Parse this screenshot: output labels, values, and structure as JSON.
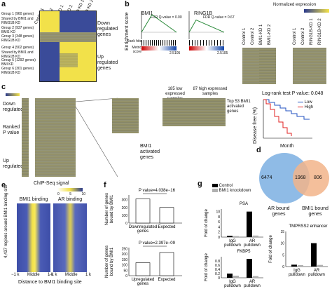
{
  "panels": {
    "a": {
      "letter": "a",
      "columns": [
        "Control 1",
        "Control 2",
        "BMI1-KD 1",
        "BMI1-KD 2",
        "RING1B-KD 1",
        "RING1B-KD 2"
      ],
      "groups": [
        "Group 1 (960 genes)",
        "Shared by BMI1 and RING1B KD",
        "Group 2 (937 genes) BMI1 KD",
        "Group 3 (348 genes) RING1B KD",
        "Group 4 (502 genes)",
        "Shared by BMI1 and RING1B KD",
        "Group 5 (1292 genes) BMI KD",
        "Group 6 (301 genes) RING1B KD"
      ],
      "down_label": "Down regulated genes",
      "up_label": "Up regulated genes"
    },
    "b": {
      "letter": "b",
      "gsea": [
        {
          "title": "BMI1",
          "fdr": "FDR Q-value = 0.00"
        },
        {
          "title": "RING1B",
          "fdr": "FDR Q-value = 0.67"
        }
      ],
      "ylabel": "Enrichment score",
      "rank_hits": "Rank hits",
      "metric_score": "Metric score",
      "x_tick": "2.5105",
      "x_tick2": "2.5105",
      "norm_expr": "Normalized expression",
      "heat_columns_1": [
        "Control 1",
        "Control 2",
        "BMI1-KD 1",
        "BMI1-KD 2"
      ],
      "heat_columns_2": [
        "Control 1",
        "Control 2",
        "RING1B-KD 1",
        "RING1B-KD 2"
      ]
    },
    "c": {
      "letter": "c",
      "down_regulated": "Down regulated",
      "ranked_p": "Ranked P value",
      "up_regulated": "Up regulated",
      "low_expr": "185 low expressed samples",
      "high_expr": "87 high expressed samples",
      "top53": "Top 53 BMI1 activated genes",
      "bmi1_activated": "BMI1 activated genes",
      "logrank": "Log-rank test P value: 0.048",
      "km_ylabel": "Disease free (%)",
      "km_xlabel": "Month",
      "legend_low": "Low",
      "legend_high": "High",
      "low_color": "#2050c0",
      "high_color": "#e02020"
    },
    "d": {
      "letter": "d",
      "left_count": "6474",
      "overlap": "1968",
      "right_count": "806",
      "left_label": "AR bound genes",
      "right_label": "BMI1 bound genes",
      "left_color": "#8fbbe6",
      "right_color": "#f2b48a"
    },
    "e": {
      "letter": "e",
      "title": "ChIP-Seq signal",
      "scale_ticks": [
        "0",
        "5",
        "10"
      ],
      "col1": "BMI1 binding",
      "col2": "AR binding",
      "ylabel": "4,437 regions around BMI1 binding site",
      "x_ticks": [
        "−1 k",
        "Middle",
        "1 k"
      ],
      "x_ticks2": [
        "−1 k",
        "Middle",
        "1 k"
      ],
      "xlabel": "Distance to BMI1 binding site"
    },
    "f": {
      "letter": "f",
      "charts": [
        {
          "type": "bar",
          "categories": [
            "Downregulated genes",
            "Expected"
          ],
          "values": [
            310,
            200
          ],
          "pvalue": "P value=4.038e−16",
          "ylabel": "Number of genes bound by BMI1",
          "yticks": [
            "0",
            "100",
            "200",
            "300"
          ],
          "ylim": [
            0,
            360
          ]
        },
        {
          "type": "bar",
          "categories": [
            "Upregulated genes",
            "Expected"
          ],
          "values": [
            120,
            215
          ],
          "pvalue": "P value=2.397e−09",
          "ylabel": "Number of genes bound by BMI1",
          "yticks": [
            "0",
            "50",
            "100",
            "150",
            "200",
            "250"
          ],
          "ylim": [
            0,
            260
          ]
        }
      ]
    },
    "g": {
      "letter": "g",
      "legend": [
        "Control",
        "BMI1 knockdown"
      ],
      "colors": [
        "#000000",
        "#b0b0b0"
      ],
      "ylabel": "Fold of change",
      "charts": [
        {
          "title": "PSA",
          "type": "bar",
          "categories": [
            "IgG pulldown",
            "AR pulldown"
          ],
          "series": [
            {
              "name": "Control",
              "values": [
                0.5,
                10
              ]
            },
            {
              "name": "BMI1 knockdown",
              "values": [
                0.4,
                0.6
              ]
            }
          ],
          "yticks": [
            "0",
            "2",
            "4",
            "6",
            "8",
            "10"
          ],
          "ylim": [
            0,
            11
          ]
        },
        {
          "title": "FKBP5",
          "type": "bar",
          "categories": [
            "IgG pulldown",
            "AR pulldown"
          ],
          "series": [
            {
              "name": "Control",
              "values": [
                0.2,
                0.9
              ]
            },
            {
              "name": "BMI1 knockdown",
              "values": [
                0.1,
                0.08
              ]
            }
          ],
          "yticks": [
            "0",
            "0.2",
            "0.4",
            "0.6",
            "0.8"
          ],
          "ylim": [
            0,
            1.0
          ]
        },
        {
          "title": "TMPRSS2 enhancer",
          "type": "bar",
          "categories": [
            "IgG pulldown",
            "AR pulldown"
          ],
          "series": [
            {
              "name": "Control",
              "values": [
                0.8,
                10
              ]
            },
            {
              "name": "BMI1 knockdown",
              "values": [
                0.6,
                0.7
              ]
            }
          ],
          "yticks": [
            "0",
            "5",
            "10",
            "15"
          ],
          "ylim": [
            0,
            15
          ]
        }
      ]
    }
  }
}
